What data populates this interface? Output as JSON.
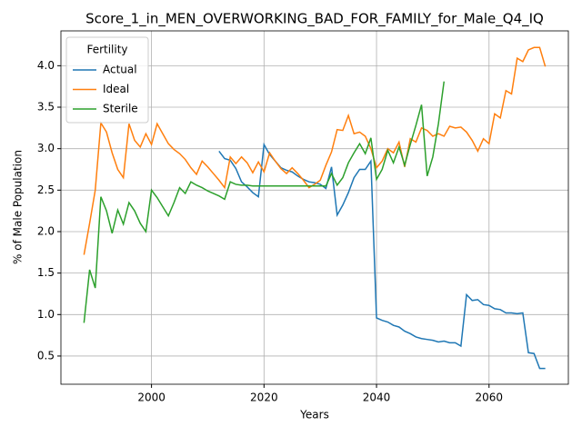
{
  "chart_data": {
    "type": "line",
    "title": "Score_1_in_MEN_OVERWORKING_BAD_FOR_FAMILY_for_Male_Q4_IQ",
    "x_label": "Years",
    "y_label": "% of Male Population",
    "legend_title": "Fertility",
    "legend": "upper left",
    "grid": true,
    "x": [
      1988,
      1989,
      1990,
      1991,
      1992,
      1993,
      1994,
      1995,
      1996,
      1997,
      1998,
      1999,
      2000,
      2001,
      2002,
      2003,
      2004,
      2005,
      2006,
      2007,
      2008,
      2009,
      2010,
      2011,
      2012,
      2013,
      2014,
      2015,
      2016,
      2017,
      2018,
      2019,
      2020,
      2021,
      2022,
      2023,
      2024,
      2025,
      2026,
      2027,
      2028,
      2029,
      2030,
      2031,
      2032,
      2033,
      2034,
      2035,
      2036,
      2037,
      2038,
      2039,
      2040,
      2041,
      2042,
      2043,
      2044,
      2045,
      2046,
      2047,
      2048,
      2049,
      2050,
      2051,
      2052,
      2053,
      2054,
      2055,
      2056,
      2057,
      2058,
      2059,
      2060,
      2061,
      2062,
      2063,
      2064,
      2065,
      2066,
      2067,
      2068,
      2069,
      2070
    ],
    "series": [
      {
        "name": "Actual",
        "color": "#1f77b4",
        "values": [
          null,
          null,
          null,
          null,
          null,
          null,
          null,
          null,
          null,
          null,
          null,
          null,
          null,
          null,
          null,
          null,
          null,
          null,
          null,
          null,
          null,
          null,
          null,
          null,
          2.97,
          2.88,
          2.86,
          2.76,
          2.6,
          2.54,
          2.47,
          2.42,
          3.05,
          2.93,
          2.85,
          2.77,
          2.74,
          2.72,
          2.67,
          2.63,
          2.6,
          2.59,
          2.57,
          2.52,
          2.78,
          2.2,
          2.32,
          2.47,
          2.65,
          2.75,
          2.75,
          2.85,
          0.96,
          0.93,
          0.91,
          0.87,
          0.85,
          0.8,
          0.77,
          0.73,
          0.71,
          0.7,
          0.69,
          0.67,
          0.68,
          0.66,
          0.66,
          0.62,
          1.24,
          1.17,
          1.18,
          1.12,
          1.11,
          1.07,
          1.06,
          1.02,
          1.02,
          1.01,
          1.02,
          0.54,
          0.53,
          0.35,
          0.35
        ]
      },
      {
        "name": "Ideal",
        "color": "#ff7f0e",
        "values": [
          1.72,
          2.1,
          2.5,
          3.31,
          3.2,
          2.95,
          2.75,
          2.65,
          3.3,
          3.1,
          3.02,
          3.18,
          3.05,
          3.3,
          3.18,
          3.06,
          2.99,
          2.94,
          2.87,
          2.77,
          2.69,
          2.85,
          2.78,
          2.7,
          2.62,
          2.53,
          2.9,
          2.82,
          2.9,
          2.83,
          2.71,
          2.84,
          2.72,
          2.95,
          2.85,
          2.76,
          2.7,
          2.77,
          2.7,
          2.62,
          2.53,
          2.57,
          2.62,
          2.8,
          2.96,
          3.23,
          3.22,
          3.4,
          3.18,
          3.2,
          3.15,
          3.0,
          2.77,
          2.85,
          3.0,
          2.95,
          3.08,
          2.78,
          3.12,
          3.08,
          3.25,
          3.22,
          3.15,
          3.18,
          3.15,
          3.27,
          3.25,
          3.26,
          3.2,
          3.1,
          2.97,
          3.12,
          3.06,
          3.42,
          3.37,
          3.7,
          3.66,
          4.09,
          4.05,
          4.19,
          4.22,
          4.22,
          3.99
        ]
      },
      {
        "name": "Sterile",
        "color": "#2ca02c",
        "values": [
          0.9,
          1.54,
          1.32,
          2.42,
          2.25,
          1.98,
          2.26,
          2.09,
          2.35,
          2.25,
          2.1,
          2.0,
          2.5,
          2.41,
          2.3,
          2.19,
          2.35,
          2.53,
          2.46,
          2.6,
          2.56,
          2.53,
          2.49,
          2.46,
          2.43,
          2.39,
          2.6,
          2.57,
          2.56,
          2.56,
          2.55,
          2.55,
          2.55,
          2.55,
          2.55,
          2.55,
          2.55,
          2.55,
          2.55,
          2.55,
          2.55,
          2.55,
          2.55,
          2.55,
          2.7,
          2.56,
          2.65,
          2.83,
          2.95,
          3.06,
          2.94,
          3.13,
          2.63,
          2.75,
          2.98,
          2.83,
          3.02,
          2.8,
          3.05,
          3.28,
          3.53,
          2.67,
          2.9,
          3.3,
          3.81,
          null,
          null,
          null,
          null,
          null,
          null,
          null,
          null,
          null,
          null,
          null,
          null,
          null,
          null,
          null,
          null,
          null,
          null
        ]
      }
    ],
    "xlim": [
      1983.9,
      2074.1
    ],
    "xticks": [
      2000,
      2020,
      2040,
      2060
    ],
    "ylim": [
      0.16,
      4.42
    ],
    "yticks": [
      0.5,
      {
        "value": 1,
        "label": "1.0"
      },
      1.5,
      {
        "value": 2,
        "label": "2.0"
      },
      2.5,
      {
        "value": 3,
        "label": "3.0"
      },
      3.5,
      {
        "value": 4,
        "label": "4.0"
      }
    ]
  }
}
